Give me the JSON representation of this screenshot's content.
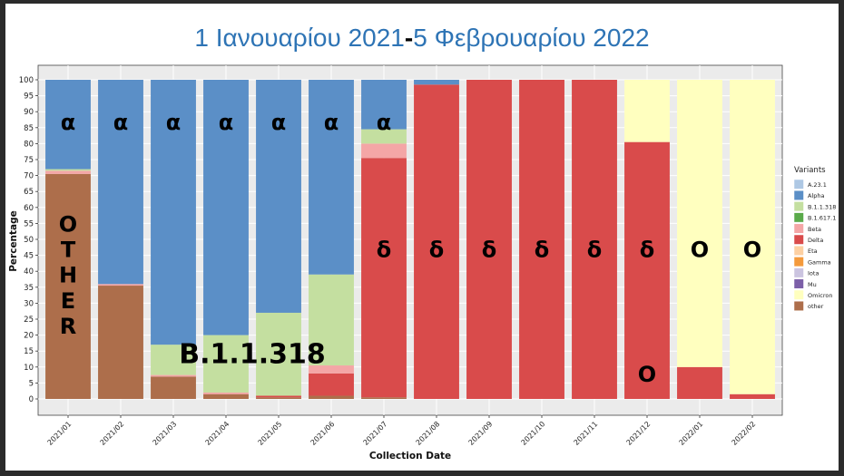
{
  "title": {
    "part1": "1 Ιανουαρίου 2021",
    "dash": "-",
    "part2": "5 Φεβρουαρίου 2022"
  },
  "chart_data": {
    "type": "bar",
    "stacked": true,
    "xlabel": "Collection Date",
    "ylabel": "Percentage",
    "ylim": [
      0,
      100
    ],
    "yticks": [
      0,
      5,
      10,
      15,
      20,
      25,
      30,
      35,
      40,
      45,
      50,
      55,
      60,
      65,
      70,
      75,
      80,
      85,
      90,
      95,
      100
    ],
    "grid": true,
    "categories": [
      "2021/01",
      "2021/02",
      "2021/03",
      "2021/04",
      "2021/05",
      "2021/06",
      "2021/07",
      "2021/08",
      "2021/09",
      "2021/10",
      "2021/11",
      "2021/12",
      "2022/01",
      "2022/02"
    ],
    "series": [
      {
        "name": "other",
        "color": "#ad6e4b",
        "values": [
          70.5,
          35.5,
          7,
          1.5,
          0.5,
          1,
          0.5,
          0,
          0,
          0,
          0,
          0,
          0,
          0
        ]
      },
      {
        "name": "Delta",
        "color": "#d94b4b",
        "values": [
          0,
          0,
          0,
          0,
          0.5,
          7,
          75,
          98.5,
          100,
          100,
          100,
          80.5,
          10,
          1.5
        ]
      },
      {
        "name": "Omicron",
        "color": "#ffffbf",
        "values": [
          0,
          0,
          0,
          0,
          0,
          0,
          0,
          0,
          0,
          0,
          0,
          19.5,
          90,
          98.5
        ]
      },
      {
        "name": "Beta",
        "color": "#f4a6a6",
        "values": [
          1,
          0.5,
          0.5,
          0.5,
          0,
          2.5,
          4.5,
          0,
          0,
          0,
          0,
          0,
          0,
          0
        ]
      },
      {
        "name": "B.1.1.318",
        "color": "#c4dfa0",
        "values": [
          0.5,
          0,
          9.5,
          18,
          26,
          28.5,
          4.5,
          0,
          0,
          0,
          0,
          0,
          0,
          0
        ]
      },
      {
        "name": "Alpha",
        "color": "#5b8fc7",
        "values": [
          28,
          64,
          83,
          80,
          73,
          61,
          15.5,
          1.5,
          0,
          0,
          0,
          0,
          0,
          0
        ]
      }
    ],
    "legend": {
      "title": "Variants",
      "placement": "right",
      "entries": [
        {
          "name": "A.23.1",
          "color": "#aec8e4"
        },
        {
          "name": "Alpha",
          "color": "#5b8fc7"
        },
        {
          "name": "B.1.1.318",
          "color": "#c4dfa0"
        },
        {
          "name": "B.1.617.1",
          "color": "#5aaa4a"
        },
        {
          "name": "Beta",
          "color": "#f4a6a6"
        },
        {
          "name": "Delta",
          "color": "#d94b4b"
        },
        {
          "name": "Eta",
          "color": "#fdd0a2"
        },
        {
          "name": "Gamma",
          "color": "#f49a3c"
        },
        {
          "name": "Iota",
          "color": "#cbc4e0"
        },
        {
          "name": "Mu",
          "color": "#7c5fa8"
        },
        {
          "name": "Omicron",
          "color": "#ffffbf"
        },
        {
          "name": "other",
          "color": "#ad6e4b"
        }
      ]
    },
    "annotations": [
      {
        "text": "α",
        "bar": 0,
        "y": 87
      },
      {
        "text": "α",
        "bar": 1,
        "y": 87
      },
      {
        "text": "α",
        "bar": 2,
        "y": 87
      },
      {
        "text": "α",
        "bar": 3,
        "y": 87
      },
      {
        "text": "α",
        "bar": 4,
        "y": 87
      },
      {
        "text": "α",
        "bar": 5,
        "y": 87
      },
      {
        "text": "α",
        "bar": 6,
        "y": 87
      },
      {
        "text": "O",
        "bar": 0,
        "y": 55
      },
      {
        "text": "T",
        "bar": 0,
        "y": 47
      },
      {
        "text": "H",
        "bar": 0,
        "y": 39
      },
      {
        "text": "E",
        "bar": 0,
        "y": 31
      },
      {
        "text": "R",
        "bar": 0,
        "y": 23
      },
      {
        "text": "B.1.1.318",
        "bar": 3.5,
        "y": 14
      },
      {
        "text": "δ",
        "bar": 6,
        "y": 47
      },
      {
        "text": "δ",
        "bar": 7,
        "y": 47
      },
      {
        "text": "δ",
        "bar": 8,
        "y": 47
      },
      {
        "text": "δ",
        "bar": 9,
        "y": 47
      },
      {
        "text": "δ",
        "bar": 10,
        "y": 47
      },
      {
        "text": "δ",
        "bar": 11,
        "y": 47
      },
      {
        "text": "O",
        "bar": 12,
        "y": 47
      },
      {
        "text": "O",
        "bar": 13,
        "y": 47
      },
      {
        "text": "O",
        "bar": 11,
        "y": 8
      }
    ]
  }
}
